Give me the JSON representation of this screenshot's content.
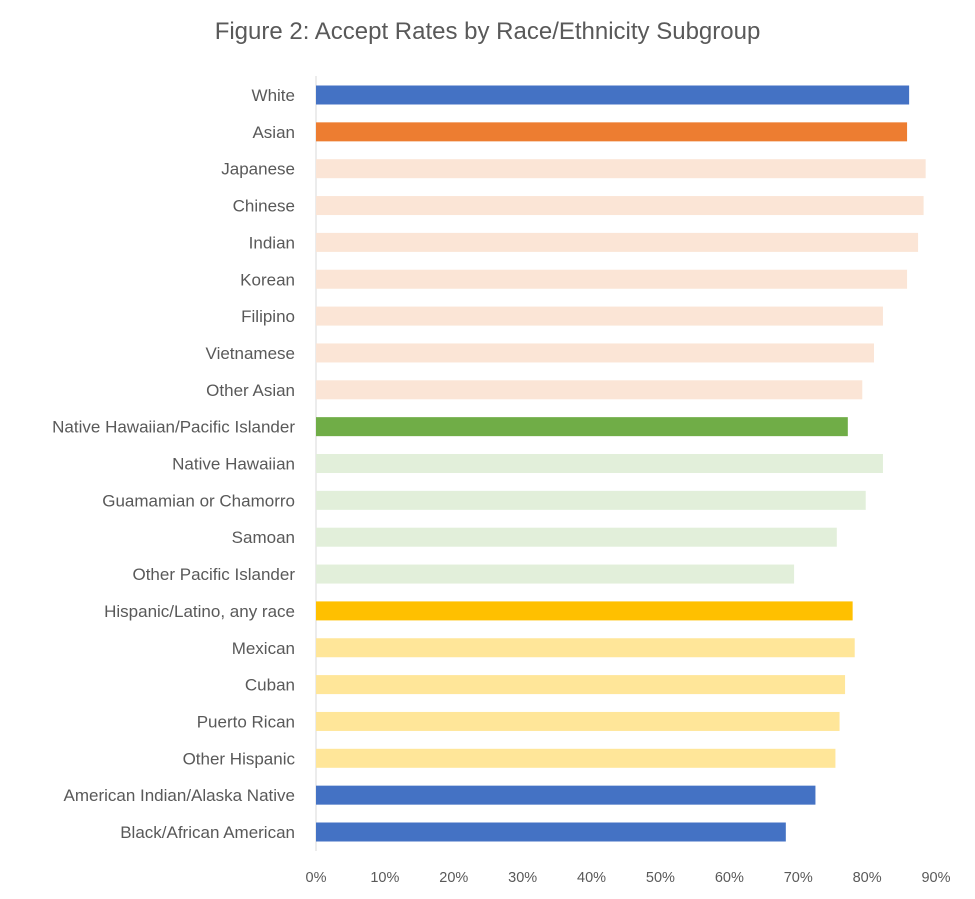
{
  "chart_data": {
    "type": "bar",
    "orientation": "horizontal",
    "title": "Figure 2: Accept Rates by Race/Ethnicity Subgroup",
    "xlabel": "",
    "ylabel": "",
    "xlim": [
      0,
      0.9
    ],
    "x_ticks": [
      {
        "value": 0.0,
        "label": "0%"
      },
      {
        "value": 0.1,
        "label": "10%"
      },
      {
        "value": 0.2,
        "label": "20%"
      },
      {
        "value": 0.3,
        "label": "30%"
      },
      {
        "value": 0.4,
        "label": "40%"
      },
      {
        "value": 0.5,
        "label": "50%"
      },
      {
        "value": 0.6,
        "label": "60%"
      },
      {
        "value": 0.7,
        "label": "70%"
      },
      {
        "value": 0.8,
        "label": "80%"
      },
      {
        "value": 0.9,
        "label": "90%"
      }
    ],
    "grid": false,
    "legend": "none",
    "categories": [
      "White",
      "Asian",
      "Japanese",
      "Chinese",
      "Indian",
      "Korean",
      "Filipino",
      "Vietnamese",
      "Other Asian",
      "Native Hawaiian/Pacific Islander",
      "Native Hawaiian",
      "Guamamian or Chamorro",
      "Samoan",
      "Other Pacific Islander",
      "Hispanic/Latino, any race",
      "Mexican",
      "Cuban",
      "Puerto Rican",
      "Other Hispanic",
      "American Indian/Alaska Native",
      "Black/African American"
    ],
    "values": [
      0.861,
      0.858,
      0.885,
      0.882,
      0.874,
      0.858,
      0.823,
      0.81,
      0.793,
      0.772,
      0.823,
      0.798,
      0.756,
      0.694,
      0.779,
      0.782,
      0.768,
      0.76,
      0.754,
      0.725,
      0.682
    ],
    "colors": [
      "#4472C4",
      "#ED7D31",
      "#FBE5D6",
      "#FBE5D6",
      "#FBE5D6",
      "#FBE5D6",
      "#FBE5D6",
      "#FBE5D6",
      "#FBE5D6",
      "#70AD47",
      "#E2EFDA",
      "#E2EFDA",
      "#E2EFDA",
      "#E2EFDA",
      "#FFC000",
      "#FFE699",
      "#FFE699",
      "#FFE699",
      "#FFE699",
      "#4472C4",
      "#4472C4"
    ],
    "axis_color": "#D9D9D9"
  }
}
